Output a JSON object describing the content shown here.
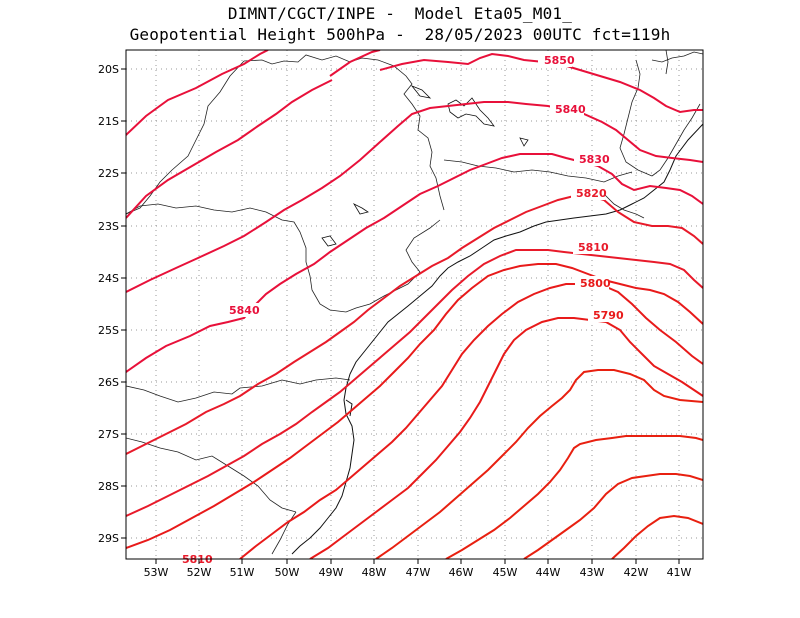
{
  "title_line1": "DIMNT/CGCT/INPE -  Model Eta05_M01_",
  "title_line2": "Geopotential Height 500hPa -  28/05/2023 00UTC fct=119h",
  "map": {
    "lon_range": [
      -53.6,
      -40.5
    ],
    "lat_range": [
      -29.4,
      -19.6
    ],
    "x_ticks": [
      "53W",
      "52W",
      "51W",
      "50W",
      "49W",
      "48W",
      "47W",
      "46W",
      "45W",
      "44W",
      "43W",
      "42W",
      "41W"
    ],
    "y_ticks": [
      "20S",
      "21S",
      "22S",
      "23S",
      "24S",
      "25S",
      "26S",
      "27S",
      "28S",
      "29S"
    ],
    "grid": "dotted"
  },
  "contour_labels": [
    {
      "text": "5850",
      "color": "#e8103a"
    },
    {
      "text": "5840",
      "color": "#e8103a"
    },
    {
      "text": "5830",
      "color": "#e8103a"
    },
    {
      "text": "5820",
      "color": "#e81a2a"
    },
    {
      "text": "5810",
      "color": "#e81a2a"
    },
    {
      "text": "5800",
      "color": "#e81a1a"
    },
    {
      "text": "5790",
      "color": "#e81a1a"
    },
    {
      "text": "5840",
      "color": "#e8103a"
    },
    {
      "text": "5810",
      "color": "#e81a2a"
    }
  ]
}
